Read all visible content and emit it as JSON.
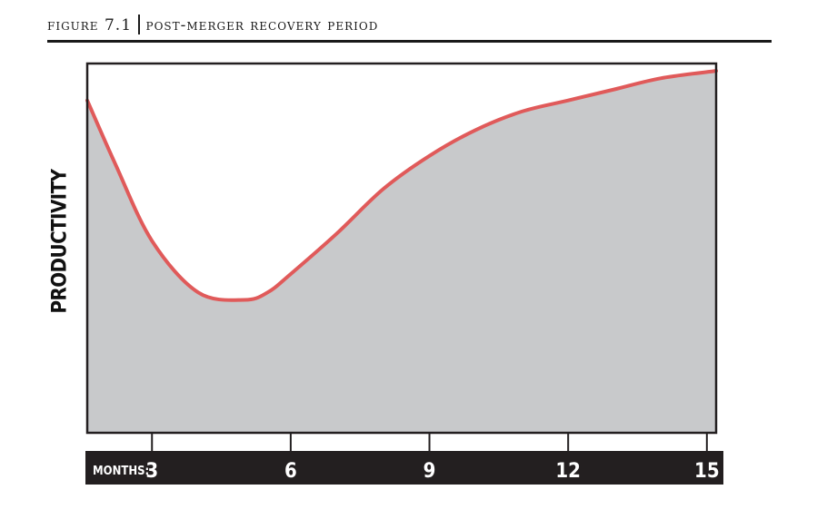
{
  "figure": {
    "number": "7.1",
    "prefix": "figure",
    "title": "post-merger recovery period"
  },
  "chart_data": {
    "type": "area",
    "title": "FIGURE 7.1 | POST-MERGER RECOVERY PERIOD",
    "ylabel": "PRODUCTIVITY",
    "xlabel": "MONTHS:",
    "x_ticks": [
      3,
      6,
      9,
      12,
      15
    ],
    "xlim": [
      1.6,
      15.2
    ],
    "ylim": [
      0,
      10
    ],
    "y_ticks_shown": false,
    "grid": false,
    "series": [
      {
        "x": [
          1.6,
          2.2,
          3.0,
          4.0,
          5.0,
          5.5,
          6.0,
          7.0,
          8.0,
          9.0,
          10.0,
          11.0,
          12.0,
          13.0,
          14.0,
          15.2
        ],
        "values": [
          9.0,
          7.3,
          5.2,
          3.8,
          3.6,
          3.8,
          4.3,
          5.4,
          6.6,
          7.5,
          8.2,
          8.7,
          9.0,
          9.3,
          9.6,
          9.8
        ]
      }
    ],
    "colors": {
      "line": "#e05a5a",
      "fill": "#c8c9cb",
      "axis_bar": "#231f20",
      "tick_text": "#ffffff"
    }
  }
}
